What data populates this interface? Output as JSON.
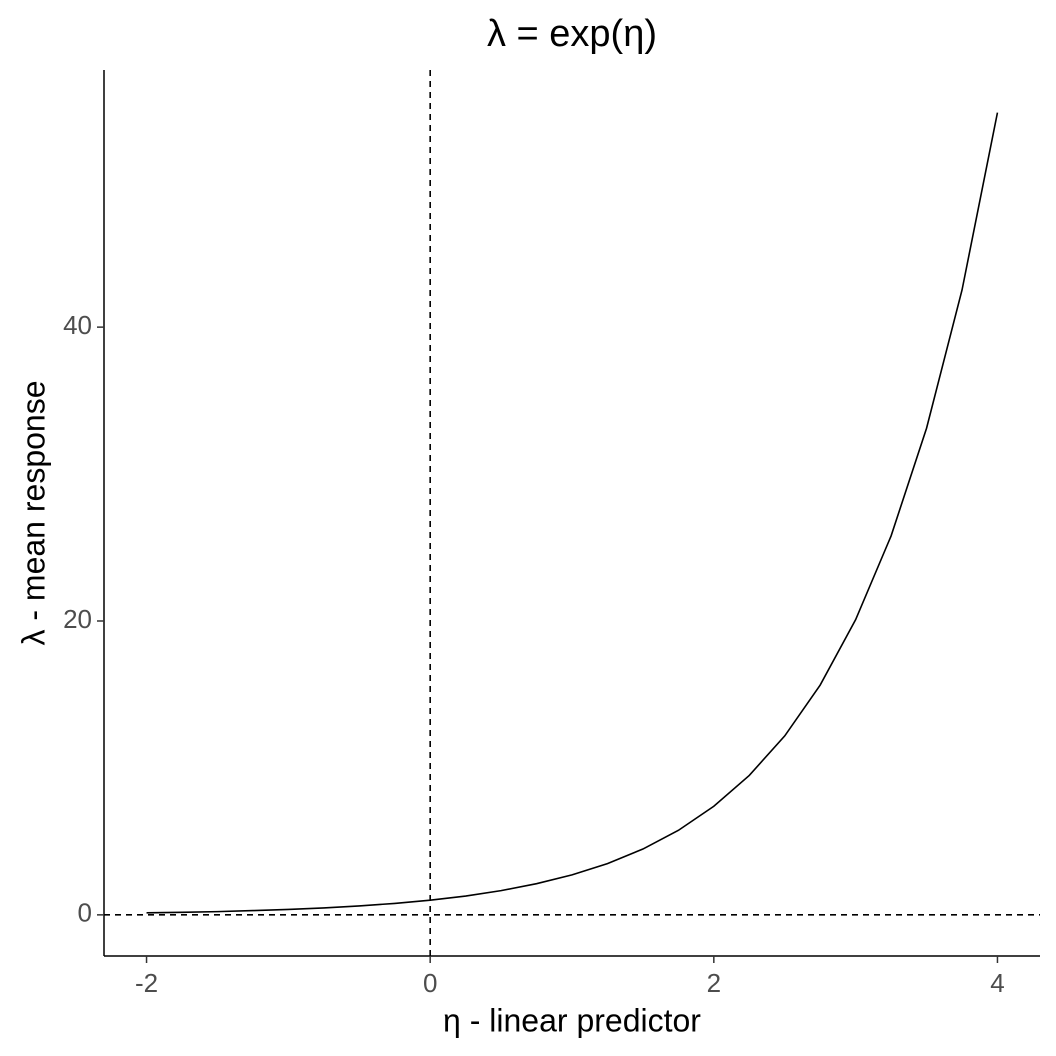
{
  "chart_data": {
    "type": "line",
    "title": "λ = exp(η)",
    "x_label": "η - linear predictor",
    "y_label": "λ - mean response",
    "x": [
      -2,
      -1.75,
      -1.5,
      -1.25,
      -1,
      -0.75,
      -0.5,
      -0.25,
      0,
      0.25,
      0.5,
      0.75,
      1,
      1.25,
      1.5,
      1.75,
      2,
      2.25,
      2.5,
      2.75,
      3,
      3.25,
      3.5,
      3.75,
      4
    ],
    "series": [
      {
        "color": "#000000",
        "values": [
          0.14,
          0.17,
          0.22,
          0.29,
          0.37,
          0.47,
          0.61,
          0.78,
          1,
          1.28,
          1.65,
          2.12,
          2.72,
          3.49,
          4.48,
          5.75,
          7.39,
          9.49,
          12.18,
          15.64,
          20.09,
          25.79,
          33.12,
          42.52,
          54.6
        ]
      }
    ],
    "reference_lines": {
      "x": 0,
      "y": 0
    },
    "xlim": [
      -2.3,
      4.3
    ],
    "ylim": [
      -2.8,
      57.5
    ],
    "xticks": [
      -2,
      0,
      2,
      4
    ],
    "yticks": [
      0,
      20,
      40
    ],
    "grid": false
  }
}
